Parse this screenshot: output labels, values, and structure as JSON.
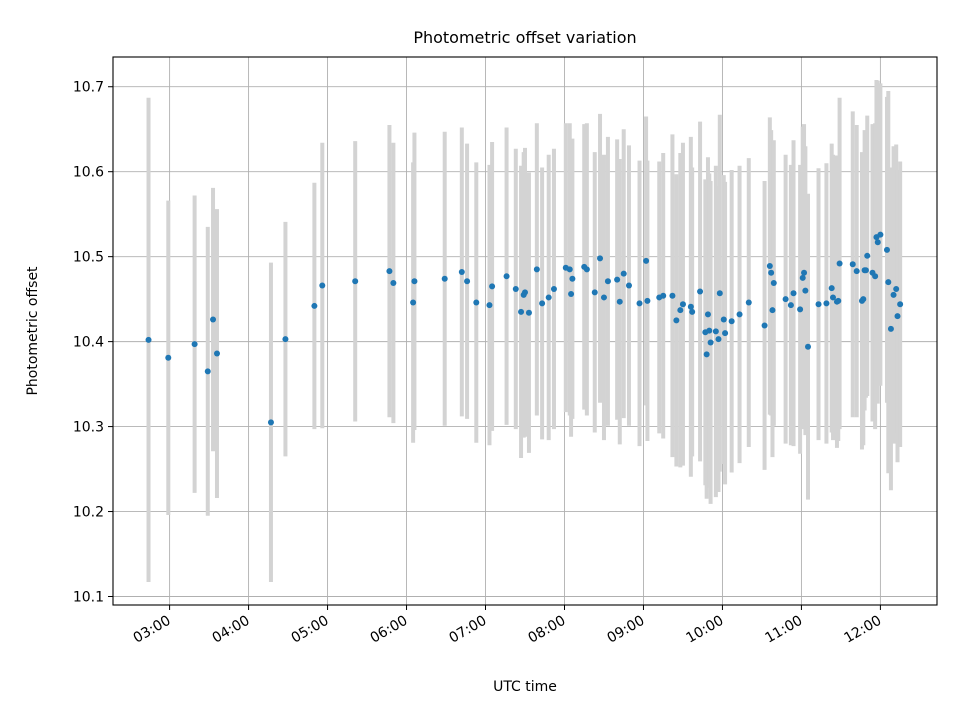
{
  "chart_data": {
    "type": "scatter",
    "title": "Photometric offset variation",
    "xlabel": "UTC time",
    "ylabel": "Photometric offset",
    "xlim": [
      "02:17",
      "12:43"
    ],
    "ylim": [
      10.09,
      10.735
    ],
    "x_ticks": [
      "03:00",
      "04:00",
      "05:00",
      "06:00",
      "07:00",
      "08:00",
      "09:00",
      "10:00",
      "11:00",
      "12:00"
    ],
    "y_ticks": [
      10.1,
      10.2,
      10.3,
      10.4,
      10.5,
      10.6,
      10.7
    ],
    "grid": true,
    "point_color": "#1f77b4",
    "errorbar_color": "#d3d3d3",
    "series": [
      {
        "x": [
          "02:44",
          "02:59",
          "03:19",
          "03:29",
          "03:33",
          "03:36",
          "04:17",
          "04:28",
          "04:50",
          "04:56",
          "05:21",
          "05:47",
          "05:50",
          "06:05",
          "06:06",
          "06:29",
          "06:42",
          "06:46",
          "06:53",
          "07:03",
          "07:05",
          "07:16",
          "07:23",
          "07:27",
          "07:29",
          "07:30",
          "07:33",
          "07:39",
          "07:43",
          "07:48",
          "07:52",
          "08:01",
          "08:04",
          "08:05",
          "08:06",
          "08:15",
          "08:17",
          "08:23",
          "08:27",
          "08:30",
          "08:33",
          "08:40",
          "08:42",
          "08:45",
          "08:49",
          "08:57",
          "09:02",
          "09:03",
          "09:12",
          "09:15",
          "09:22",
          "09:25",
          "09:28",
          "09:30",
          "09:36",
          "09:37",
          "09:43",
          "09:47",
          "09:48",
          "09:49",
          "09:50",
          "09:51",
          "09:55",
          "09:57",
          "09:58",
          "10:01",
          "10:02",
          "10:07",
          "10:13",
          "10:20",
          "10:32",
          "10:36",
          "10:37",
          "10:38",
          "10:39",
          "10:48",
          "10:52",
          "10:54",
          "10:59",
          "11:01",
          "11:02",
          "11:03",
          "11:05",
          "11:13",
          "11:19",
          "11:23",
          "11:24",
          "11:27",
          "11:28",
          "11:29",
          "11:39",
          "11:42",
          "11:46",
          "11:47",
          "11:48",
          "11:49",
          "11:50",
          "11:54",
          "11:56",
          "11:57",
          "11:58",
          "12:00",
          "12:05",
          "12:06",
          "12:08",
          "12:10",
          "12:12",
          "12:13",
          "12:15"
        ],
        "y": [
          10.402,
          10.381,
          10.397,
          10.365,
          10.426,
          10.386,
          10.305,
          10.403,
          10.442,
          10.466,
          10.471,
          10.483,
          10.469,
          10.446,
          10.471,
          10.474,
          10.482,
          10.471,
          10.446,
          10.443,
          10.465,
          10.477,
          10.462,
          10.435,
          10.455,
          10.458,
          10.434,
          10.485,
          10.445,
          10.452,
          10.462,
          10.487,
          10.485,
          10.456,
          10.474,
          10.488,
          10.485,
          10.458,
          10.498,
          10.452,
          10.471,
          10.473,
          10.447,
          10.48,
          10.466,
          10.445,
          10.495,
          10.448,
          10.452,
          10.454,
          10.454,
          10.425,
          10.437,
          10.444,
          10.441,
          10.435,
          10.459,
          10.411,
          10.385,
          10.432,
          10.413,
          10.399,
          10.412,
          10.403,
          10.457,
          10.426,
          10.41,
          10.424,
          10.432,
          10.446,
          10.419,
          10.489,
          10.481,
          10.437,
          10.469,
          10.45,
          10.443,
          10.457,
          10.438,
          10.475,
          10.481,
          10.46,
          10.394,
          10.444,
          10.445,
          10.463,
          10.452,
          10.447,
          10.448,
          10.492,
          10.491,
          10.483,
          10.448,
          10.45,
          10.484,
          10.484,
          10.501,
          10.481,
          10.477,
          10.523,
          10.517,
          10.526,
          10.508,
          10.47,
          10.415,
          10.455,
          10.462,
          10.43,
          10.444
        ],
        "yerr": [
          0.285,
          0.185,
          0.175,
          0.17,
          0.155,
          0.17,
          0.188,
          0.138,
          0.145,
          0.168,
          0.165,
          0.172,
          0.165,
          0.165,
          0.175,
          0.173,
          0.17,
          0.162,
          0.165,
          0.165,
          0.17,
          0.175,
          0.165,
          0.172,
          0.168,
          0.17,
          0.165,
          0.172,
          0.16,
          0.168,
          0.165,
          0.17,
          0.172,
          0.168,
          0.165,
          0.168,
          0.172,
          0.165,
          0.17,
          0.168,
          0.17,
          0.165,
          0.168,
          0.17,
          0.165,
          0.168,
          0.17,
          0.165,
          0.16,
          0.168,
          0.19,
          0.172,
          0.185,
          0.19,
          0.2,
          0.17,
          0.2,
          0.18,
          0.17,
          0.185,
          0.185,
          0.19,
          0.195,
          0.18,
          0.21,
          0.17,
          0.178,
          0.178,
          0.175,
          0.17,
          0.17,
          0.175,
          0.168,
          0.173,
          0.168,
          0.17,
          0.165,
          0.18,
          0.17,
          0.178,
          0.175,
          0.17,
          0.18,
          0.16,
          0.165,
          0.17,
          0.168,
          0.172,
          0.165,
          0.195,
          0.18,
          0.172,
          0.175,
          0.172,
          0.165,
          0.15,
          0.165,
          0.175,
          0.18,
          0.185,
          0.19,
          0.178,
          0.18,
          0.225,
          0.19,
          0.175,
          0.17,
          0.172,
          0.168
        ]
      }
    ]
  }
}
